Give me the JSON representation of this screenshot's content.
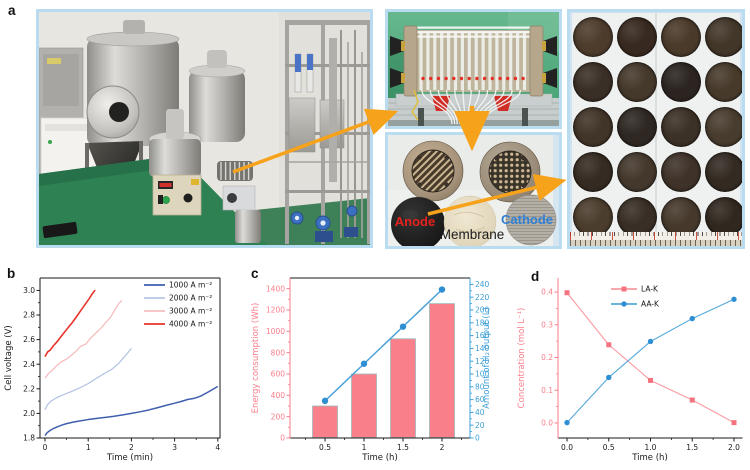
{
  "figure": {
    "panel_labels": {
      "a": "a",
      "b": "b",
      "c": "c",
      "d": "d"
    }
  },
  "panel_a": {
    "labels": {
      "anode": "Anode",
      "membrane": "Membrane",
      "cathode": "Cathode"
    },
    "label_colors": {
      "anode": "#e8211d",
      "membrane": "#1c1c1c",
      "cathode": "#2e7fd6"
    },
    "arrow_color": "#f7a21b",
    "photo_border_color": "#b9dcf1",
    "disks": {
      "rows": 5,
      "cols": 4,
      "colors": [
        "#4d3c2c",
        "#37291f",
        "#4a3a2a",
        "#423629",
        "#3a2f26",
        "#45392b",
        "#2b2420",
        "#473a2b",
        "#413428",
        "#2e2722",
        "#3c3127",
        "#483c2e",
        "#352b22",
        "#44382c",
        "#3e3229",
        "#332a22",
        "#4b3d2d",
        "#382e25",
        "#46392c",
        "#30281f"
      ]
    }
  },
  "chart_data": [
    {
      "id": "b",
      "type": "line",
      "xlim": [
        -0.116,
        4.051
      ],
      "ylim": [
        1.8,
        3.101
      ],
      "frame": {
        "top": "#1a1a1a",
        "right": "#1a1a1a"
      },
      "axes": {
        "bottom": {
          "color": "#1a1a1a",
          "title": "Time (min)",
          "ticks": [
            0,
            1,
            2,
            3,
            4
          ],
          "labels": [
            "0",
            "1",
            "2",
            "3",
            "4"
          ],
          "minor": [
            0.5,
            1.5,
            2.5,
            3.5
          ]
        },
        "left": {
          "color": "#1a1a1a",
          "title": "Cell voltage (V)",
          "ticks": [
            1.8,
            2.0,
            2.2,
            2.4,
            2.6,
            2.8,
            3.0
          ],
          "labels": [
            "1.8",
            "2.0",
            "2.2",
            "2.4",
            "2.6",
            "2.8",
            "3.0"
          ],
          "minor": [
            1.9,
            2.1,
            2.3,
            2.5,
            2.7,
            2.9
          ]
        }
      },
      "series": [
        {
          "name": "1000 A m⁻²",
          "color": "#3f5fae",
          "width": 1.5,
          "marker": "none",
          "x": [
            0,
            0.05,
            0.12,
            0.2,
            0.3,
            0.4,
            0.5,
            0.65,
            0.8,
            1,
            1.2,
            1.4,
            1.6,
            1.8,
            2,
            2.2,
            2.4,
            2.6,
            2.8,
            3,
            3.15,
            3.3,
            3.45,
            3.6,
            3.8,
            4
          ],
          "y": [
            1.82,
            1.843,
            1.862,
            1.878,
            1.893,
            1.906,
            1.917,
            1.929,
            1.938,
            1.95,
            1.96,
            1.968,
            1.977,
            1.988,
            2.0,
            2.013,
            2.028,
            2.046,
            2.065,
            2.083,
            2.097,
            2.113,
            2.122,
            2.14,
            2.178,
            2.22
          ]
        },
        {
          "name": "2000 A m⁻²",
          "color": "#b7c5e5",
          "width": 1.3,
          "marker": "none",
          "x": [
            0,
            0.06,
            0.14,
            0.25,
            0.4,
            0.6,
            0.8,
            1,
            1.2,
            1.4,
            1.55,
            1.7,
            1.85,
            2
          ],
          "y": [
            2.03,
            2.072,
            2.1,
            2.124,
            2.148,
            2.176,
            2.207,
            2.243,
            2.287,
            2.33,
            2.36,
            2.405,
            2.465,
            2.528
          ]
        },
        {
          "name": "3000 A m⁻²",
          "color": "#f6bec0",
          "width": 1.3,
          "marker": "none",
          "x": [
            0,
            0.08,
            0.18,
            0.28,
            0.38,
            0.5,
            0.6,
            0.72,
            0.82,
            0.95,
            1.05,
            1.18,
            1.3,
            1.42,
            1.52,
            1.62,
            1.72,
            1.78
          ],
          "y": [
            2.285,
            2.325,
            2.355,
            2.392,
            2.42,
            2.442,
            2.47,
            2.505,
            2.545,
            2.565,
            2.61,
            2.655,
            2.695,
            2.745,
            2.782,
            2.845,
            2.898,
            2.918
          ]
        },
        {
          "name": "4000 A m⁻²",
          "color": "#e8332a",
          "width": 1.6,
          "marker": "none",
          "x": [
            0,
            0.06,
            0.12,
            0.2,
            0.28,
            0.36,
            0.45,
            0.54,
            0.63,
            0.72,
            0.82,
            0.92,
            1.02,
            1.1,
            1.16
          ],
          "y": [
            2.462,
            2.5,
            2.515,
            2.552,
            2.583,
            2.62,
            2.66,
            2.7,
            2.738,
            2.782,
            2.832,
            2.882,
            2.932,
            2.975,
            3.003
          ]
        }
      ]
    },
    {
      "id": "c",
      "type": "bar+line",
      "xlim": [
        0.051,
        2.359
      ],
      "ylim": [
        0,
        1500
      ],
      "ylim_right": [
        0,
        250
      ],
      "frame": {
        "top": "#1a1a1a"
      },
      "axes": {
        "bottom": {
          "color": "#1a1a1a",
          "title": "Time (h)",
          "ticks": [
            0.5,
            1,
            1.5,
            2
          ],
          "labels": [
            "0.5",
            "1",
            "1.5",
            "2"
          ],
          "minor": [
            0.25,
            0.75,
            1.25,
            1.75,
            2.25
          ]
        },
        "left": {
          "color": "#fa7e8a",
          "title": "Energy consumption (Wh)",
          "ticks": [
            0,
            200,
            400,
            600,
            800,
            1000,
            1200,
            1400
          ],
          "labels": [
            "0",
            "200",
            "400",
            "600",
            "800",
            "1000",
            "1200",
            "1400"
          ],
          "minor": [
            100,
            300,
            500,
            700,
            900,
            1100,
            1300
          ]
        },
        "right": {
          "color": "#3d9fd8",
          "title": "Amount of H₂ output (L)",
          "ticks": [
            0,
            20,
            40,
            60,
            80,
            100,
            120,
            140,
            160,
            180,
            200,
            220,
            240
          ],
          "labels": [
            "0",
            "20",
            "40",
            "60",
            "80",
            "100",
            "120",
            "140",
            "160",
            "180",
            "200",
            "220",
            "240"
          ],
          "minor": [
            10,
            30,
            50,
            70,
            90,
            110,
            130,
            150,
            170,
            190,
            210,
            230
          ]
        }
      },
      "categories": [
        0.5,
        1,
        1.5,
        2
      ],
      "bars": {
        "name": "Energy consumption",
        "color": "#f9808b",
        "edge": "#9fb8b9",
        "values": [
          300,
          600,
          930,
          1260
        ]
      },
      "line_series": {
        "name": "Amount of H2 output",
        "color": "#4aa0d8",
        "marker_color": "#2e8fd2",
        "values": [
          58,
          116,
          174,
          232
        ]
      }
    },
    {
      "id": "d",
      "type": "line",
      "xlim": [
        -0.108,
        2.096
      ],
      "ylim": [
        -0.046,
        0.443
      ],
      "frame": {},
      "axes": {
        "bottom": {
          "color": "#1a1a1a",
          "title": "Time (h)",
          "ticks": [
            0,
            0.5,
            1,
            1.5,
            2
          ],
          "labels": [
            "0.0",
            "0.5",
            "1.0",
            "1.5",
            "2.0"
          ],
          "minor": [
            0.25,
            0.75,
            1.25,
            1.75
          ]
        },
        "left": {
          "color": "#fa7e8a",
          "title": "Concentration (mol L⁻¹)",
          "ticks": [
            0,
            0.1,
            0.2,
            0.3,
            0.4
          ],
          "labels": [
            "0.0",
            "0.1",
            "0.2",
            "0.3",
            "0.4"
          ],
          "minor": [
            0.05,
            0.15,
            0.25,
            0.35
          ]
        }
      },
      "series": [
        {
          "name": "LA-K",
          "color": "#f99ba3",
          "width": 1.1,
          "marker": "square",
          "marker_color": "#f5737f",
          "x": [
            0,
            0.5,
            1,
            1.5,
            2
          ],
          "y": [
            0.398,
            0.239,
            0.13,
            0.07,
            0.001
          ]
        },
        {
          "name": "AA-K",
          "color": "#54a8dc",
          "width": 1.1,
          "marker": "circle",
          "marker_color": "#2e8fd2",
          "x": [
            0,
            0.5,
            1,
            1.5,
            2
          ],
          "y": [
            0.001,
            0.139,
            0.249,
            0.319,
            0.378
          ]
        }
      ]
    }
  ]
}
